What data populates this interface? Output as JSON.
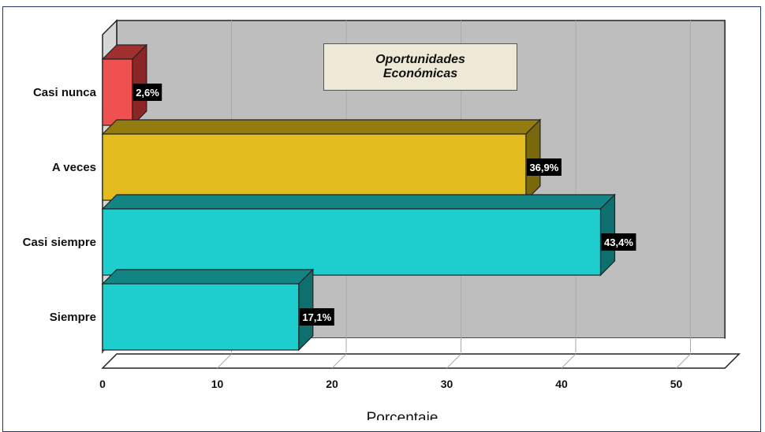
{
  "colors": {
    "plot_back": "#bebebe",
    "plot_side": "#d6d6d6",
    "grid": "#a9a9a9"
  },
  "chart_data": {
    "type": "bar",
    "orientation": "horizontal",
    "three_d": true,
    "title_box": [
      "Oportunidades",
      "Económicas"
    ],
    "xlabel": "Porcentaje",
    "xlim": [
      0,
      53
    ],
    "xticks": [
      0,
      10,
      20,
      30,
      40,
      50
    ],
    "grid": true,
    "categories": [
      "Casi nunca",
      "A veces",
      "Casi siempre",
      "Siempre"
    ],
    "values": [
      2.6,
      36.9,
      43.4,
      17.1
    ],
    "labels": [
      "2,6%",
      "36,9%",
      "43,4%",
      "17,1%"
    ],
    "bar_colors": [
      {
        "front": "#ef5050",
        "top": "#a03030",
        "side": "#8c2525"
      },
      {
        "front": "#e2bc1f",
        "top": "#927c10",
        "side": "#7a680d"
      },
      {
        "front": "#1ecece",
        "top": "#138484",
        "side": "#0f6f6f"
      },
      {
        "front": "#1ecece",
        "top": "#138484",
        "side": "#0f6f6f"
      }
    ]
  }
}
